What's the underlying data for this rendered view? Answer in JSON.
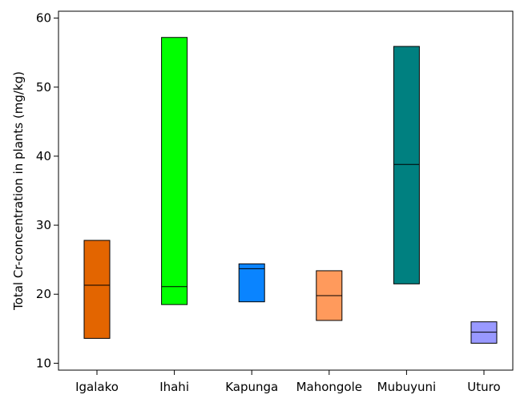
{
  "chart_data": {
    "type": "box",
    "title": "",
    "xlabel": "",
    "ylabel": "Total Cr-concentration in plants (mg/kg)",
    "ylim": [
      9,
      61
    ],
    "yticks": [
      10,
      20,
      30,
      40,
      50,
      60
    ],
    "grid": false,
    "categories": [
      "Igalako",
      "Ihahi",
      "Kapunga",
      "Mahongole",
      "Mubuyuni",
      "Uturo"
    ],
    "boxes": [
      {
        "category": "Igalako",
        "low": 13.6,
        "median": 21.3,
        "high": 27.8,
        "color": "#e36500"
      },
      {
        "category": "Ihahi",
        "low": 18.5,
        "median": 21.1,
        "high": 57.2,
        "color": "#00ff00"
      },
      {
        "category": "Kapunga",
        "low": 18.9,
        "median": 23.7,
        "high": 24.4,
        "color": "#0a84ff"
      },
      {
        "category": "Mahongole",
        "low": 16.2,
        "median": 19.8,
        "high": 23.4,
        "color": "#ff9a5c"
      },
      {
        "category": "Mubuyuni",
        "low": 21.5,
        "median": 38.8,
        "high": 55.9,
        "color": "#008080"
      },
      {
        "category": "Uturo",
        "low": 12.9,
        "median": 14.5,
        "high": 16.0,
        "color": "#9999ff"
      }
    ]
  }
}
